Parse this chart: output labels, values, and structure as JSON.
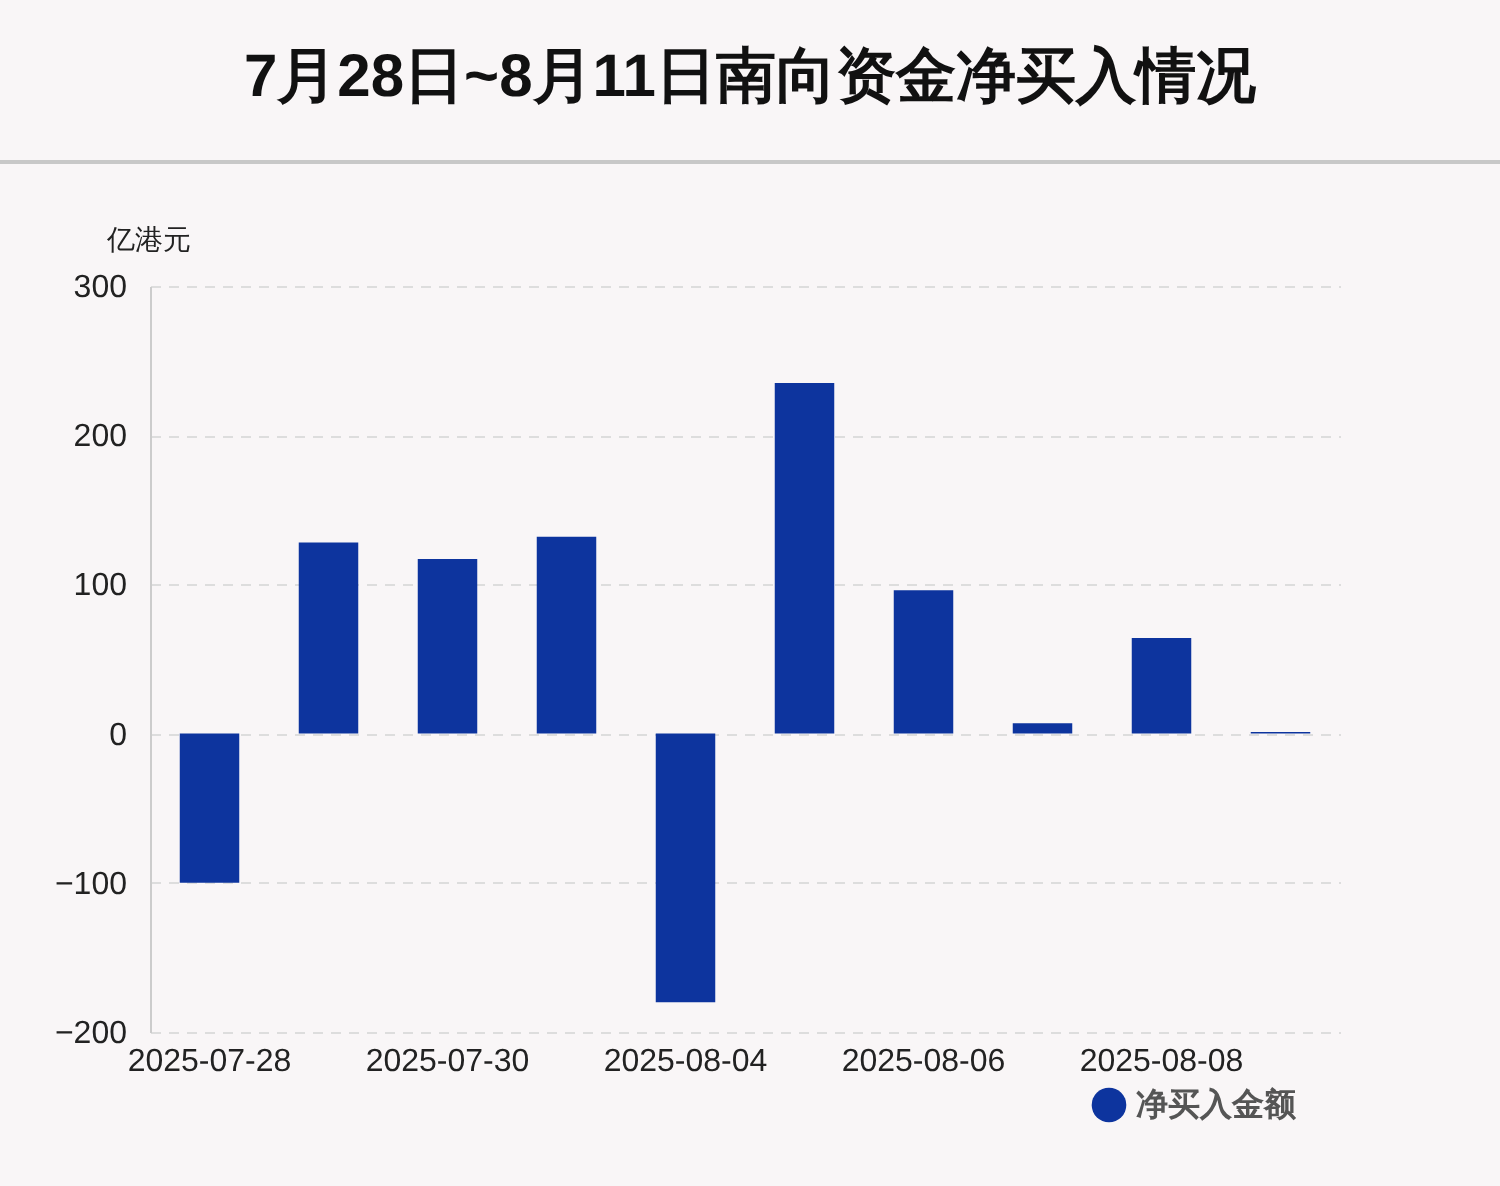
{
  "chart_data": {
    "type": "bar",
    "title": "7月28日~8月11日南向资金净买入情况",
    "ylabel": "亿港元",
    "categories": [
      "2025-07-28",
      null,
      "2025-07-30",
      null,
      "2025-08-04",
      null,
      "2025-08-06",
      null,
      "2025-08-08",
      null
    ],
    "series": [
      {
        "name": "净买入金额",
        "color": "#0d349e",
        "values": [
          -100,
          128,
          117,
          132,
          -180,
          235,
          96,
          7,
          64,
          1
        ]
      }
    ],
    "ylim": [
      -200,
      300
    ],
    "yticks": [
      -200,
      -100,
      0,
      100,
      200,
      300
    ],
    "grid": "y",
    "legend": "bottom right"
  }
}
